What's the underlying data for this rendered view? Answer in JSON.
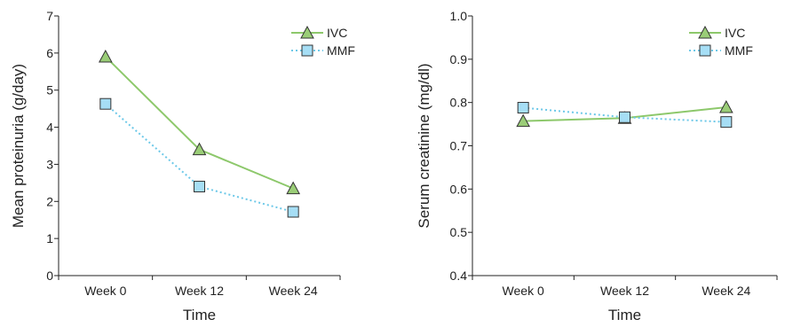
{
  "colors": {
    "ivc": "#8dc86b",
    "ivc_marker": "#9acd77",
    "mmf": "#6cc8e8",
    "mmf_marker": "#a6def5",
    "marker_edge": "#333333",
    "axis": "#222222"
  },
  "chart_data": [
    {
      "type": "line",
      "title": "",
      "xlabel": "Time",
      "ylabel": "Mean proteinuria (g/day)",
      "categories": [
        "Week 0",
        "Week 12",
        "Week 24"
      ],
      "ylim": [
        0,
        7
      ],
      "yticks": [
        0,
        1,
        2,
        3,
        4,
        5,
        6,
        7
      ],
      "ytick_labels": [
        "0",
        "1",
        "2",
        "3",
        "4",
        "5",
        "6",
        "7"
      ],
      "grid": false,
      "legend_position": "top-right",
      "series": [
        {
          "name": "IVC",
          "marker": "triangle",
          "line_style": "solid",
          "values": [
            5.9,
            3.4,
            2.35
          ]
        },
        {
          "name": "MMF",
          "marker": "square",
          "line_style": "dotted",
          "values": [
            4.63,
            2.4,
            1.72
          ]
        }
      ]
    },
    {
      "type": "line",
      "title": "",
      "xlabel": "Time",
      "ylabel": "Serum creatinine (mg/dl)",
      "categories": [
        "Week 0",
        "Week 12",
        "Week 24"
      ],
      "ylim": [
        0.4,
        1.0
      ],
      "yticks": [
        0.4,
        0.5,
        0.6,
        0.7,
        0.8,
        0.9,
        1.0
      ],
      "ytick_labels": [
        "0.4",
        "0.5",
        "0.6",
        "0.7",
        "0.8",
        "0.9",
        "1.0"
      ],
      "grid": false,
      "legend_position": "top-right",
      "series": [
        {
          "name": "IVC",
          "marker": "triangle",
          "line_style": "solid",
          "values": [
            0.757,
            0.764,
            0.789
          ]
        },
        {
          "name": "MMF",
          "marker": "square",
          "line_style": "dotted",
          "values": [
            0.788,
            0.766,
            0.755
          ]
        }
      ]
    }
  ]
}
